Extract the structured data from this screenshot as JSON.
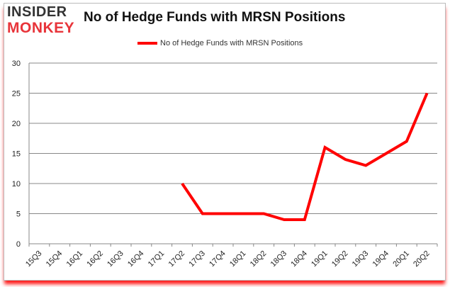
{
  "logo": {
    "line1": "INSIDER",
    "line2": "MONKEY"
  },
  "chart_data": {
    "type": "line",
    "title": "No of Hedge Funds with MRSN Positions",
    "categories": [
      "15Q3",
      "15Q4",
      "16Q1",
      "16Q2",
      "16Q3",
      "16Q4",
      "17Q1",
      "17Q2",
      "17Q3",
      "17Q4",
      "18Q1",
      "18Q2",
      "18Q3",
      "18Q4",
      "19Q1",
      "19Q2",
      "19Q3",
      "19Q4",
      "20Q1",
      "20Q2"
    ],
    "series": [
      {
        "name": "No of Hedge Funds with MRSN Positions",
        "color": "#ff0000",
        "values": [
          null,
          null,
          null,
          null,
          null,
          null,
          null,
          10,
          5,
          5,
          5,
          5,
          4,
          4,
          16,
          14,
          13,
          15,
          17,
          25
        ]
      }
    ],
    "ylim": [
      0,
      30
    ],
    "yticks": [
      0,
      5,
      10,
      15,
      20,
      25,
      30
    ],
    "grid": true,
    "legend": "top-center"
  }
}
